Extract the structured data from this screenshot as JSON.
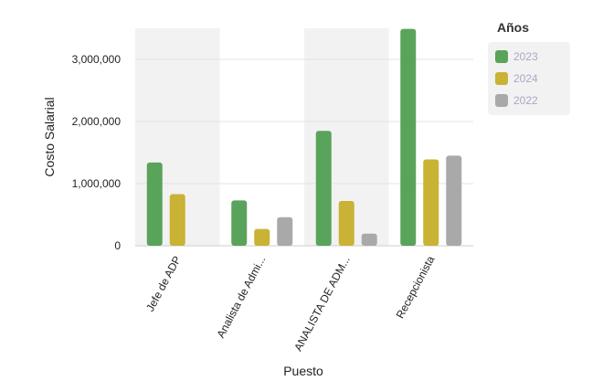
{
  "chart_data": {
    "type": "bar",
    "categories": [
      "Jefe de ADP",
      "Analista de Admi...",
      "ANALISTA DE ADM...",
      "Recepcionista"
    ],
    "series": [
      {
        "name": "2023",
        "color": "#5aa35a",
        "values": [
          1340000,
          730000,
          1850000,
          3490000
        ]
      },
      {
        "name": "2024",
        "color": "#c9b234",
        "values": [
          830000,
          270000,
          720000,
          1390000
        ]
      },
      {
        "name": "2022",
        "color": "#a9a9a9",
        "values": [
          null,
          460000,
          195000,
          1450000
        ]
      }
    ],
    "xlabel": "Puesto",
    "ylabel": "Costo Salarial",
    "ylim": [
      0,
      3500000
    ],
    "yticks": [
      0,
      1000000,
      2000000,
      3000000
    ],
    "ytick_labels": [
      "0",
      "1,000,000",
      "2,000,000",
      "3,000,000"
    ],
    "grid": true,
    "legend_position": "top-right",
    "legend_title": "Años"
  }
}
